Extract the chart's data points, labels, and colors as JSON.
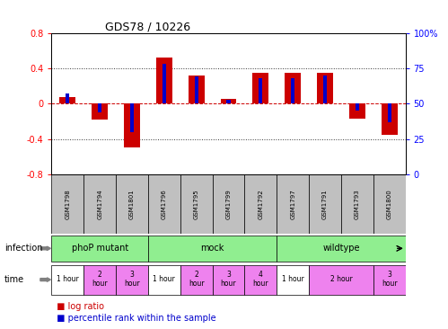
{
  "title": "GDS78 / 10226",
  "samples": [
    "GSM1798",
    "GSM1794",
    "GSM1801",
    "GSM1796",
    "GSM1795",
    "GSM1799",
    "GSM1792",
    "GSM1797",
    "GSM1791",
    "GSM1793",
    "GSM1800"
  ],
  "log_ratio": [
    0.07,
    -0.18,
    -0.5,
    0.52,
    0.32,
    0.05,
    0.35,
    0.35,
    0.35,
    -0.17,
    -0.35
  ],
  "percentile": [
    57,
    44,
    30,
    78,
    69,
    53,
    68,
    68,
    70,
    45,
    37
  ],
  "ylim_left": [
    -0.8,
    0.8
  ],
  "ylim_right": [
    0,
    100
  ],
  "yticks_left": [
    -0.8,
    -0.4,
    0.0,
    0.4,
    0.8
  ],
  "yticks_right": [
    0,
    25,
    50,
    75,
    100
  ],
  "ytick_labels_left": [
    "-0.8",
    "-0.4",
    "0",
    "0.4",
    "0.8"
  ],
  "ytick_labels_right": [
    "0",
    "25",
    "50",
    "75",
    "100%"
  ],
  "infection_groups": [
    {
      "label": "phoP mutant",
      "start": 0,
      "end": 3
    },
    {
      "label": "mock",
      "start": 3,
      "end": 7
    },
    {
      "label": "wildtype",
      "start": 7,
      "end": 11
    }
  ],
  "time_groups": [
    {
      "label": "1 hour",
      "start": 0,
      "end": 1,
      "color": "#FFFFFF"
    },
    {
      "label": "2\nhour",
      "start": 1,
      "end": 2,
      "color": "#EE82EE"
    },
    {
      "label": "3\nhour",
      "start": 2,
      "end": 3,
      "color": "#EE82EE"
    },
    {
      "label": "1 hour",
      "start": 3,
      "end": 4,
      "color": "#FFFFFF"
    },
    {
      "label": "2\nhour",
      "start": 4,
      "end": 5,
      "color": "#EE82EE"
    },
    {
      "label": "3\nhour",
      "start": 5,
      "end": 6,
      "color": "#EE82EE"
    },
    {
      "label": "4\nhour",
      "start": 6,
      "end": 7,
      "color": "#EE82EE"
    },
    {
      "label": "1 hour",
      "start": 7,
      "end": 8,
      "color": "#FFFFFF"
    },
    {
      "label": "2 hour",
      "start": 8,
      "end": 10,
      "color": "#EE82EE"
    },
    {
      "label": "3\nhour",
      "start": 10,
      "end": 11,
      "color": "#EE82EE"
    }
  ],
  "bar_color_red": "#CC0000",
  "bar_color_blue": "#0000CC",
  "bar_width": 0.5,
  "percentile_bar_width": 0.12,
  "zero_line_color": "#CC0000",
  "dotted_color": "#333333",
  "bg_color": "white",
  "sample_bg_color": "#C0C0C0",
  "infection_row_color": "#90EE90",
  "time_row_color": "#EE82EE",
  "legend_red_label": "log ratio",
  "legend_blue_label": "percentile rank within the sample"
}
